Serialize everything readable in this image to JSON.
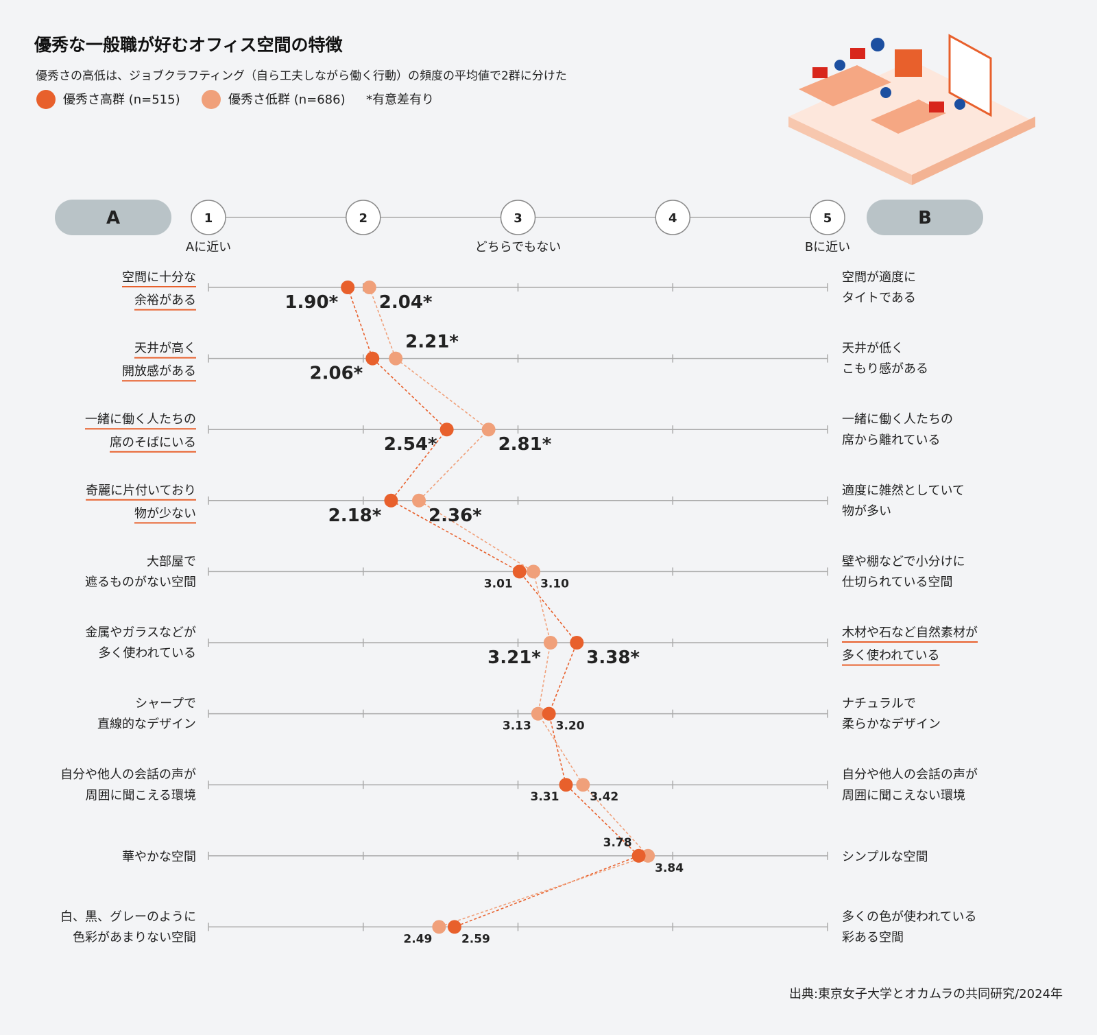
{
  "chart_data": {
    "type": "scatter",
    "title": "優秀な一般職が好むオフィス空間の特徴",
    "subtitle": "優秀さの高低は、ジョブクラフティング（自ら工夫しながら働く行動）の頻度の平均値で2群に分けた",
    "significance_note": "*有意差有り",
    "source": "出典:東京女子大学とオカムラの共同研究/2024年",
    "scale": {
      "left_pole": "A",
      "right_pole": "B",
      "ticks": [
        "1",
        "2",
        "3",
        "4",
        "5"
      ],
      "tick_labels": {
        "1": "Aに近い",
        "3": "どちらでもない",
        "5": "Bに近い"
      },
      "xlim": [
        1,
        5
      ]
    },
    "legend_placement": "top-left",
    "series": [
      {
        "name": "優秀さ高群 (n=515)",
        "color": "#e8602c",
        "values": [
          1.9,
          2.06,
          2.54,
          2.18,
          3.01,
          3.38,
          3.2,
          3.31,
          3.78,
          2.59
        ]
      },
      {
        "name": "優秀さ低群 (n=686)",
        "color": "#f0a07a",
        "values": [
          2.04,
          2.21,
          2.81,
          2.36,
          3.1,
          3.21,
          3.13,
          3.42,
          3.84,
          2.49
        ]
      }
    ],
    "items": [
      {
        "a": [
          "空間に十分な",
          "余裕がある"
        ],
        "b": [
          "空間が適度に",
          "タイトである"
        ],
        "significant": true,
        "preferred": "a"
      },
      {
        "a": [
          "天井が高く",
          "開放感がある"
        ],
        "b": [
          "天井が低く",
          "こもり感がある"
        ],
        "significant": true,
        "preferred": "a"
      },
      {
        "a": [
          "一緒に働く人たちの",
          "席のそばにいる"
        ],
        "b": [
          "一緒に働く人たちの",
          "席から離れている"
        ],
        "significant": true,
        "preferred": "a"
      },
      {
        "a": [
          "奇麗に片付いており",
          "物が少ない"
        ],
        "b": [
          "適度に雑然としていて",
          "物が多い"
        ],
        "significant": true,
        "preferred": "a"
      },
      {
        "a": [
          "大部屋で",
          "遮るものがない空間"
        ],
        "b": [
          "壁や棚などで小分けに",
          "仕切られている空間"
        ],
        "significant": false,
        "preferred": ""
      },
      {
        "a": [
          "金属やガラスなどが",
          "多く使われている"
        ],
        "b": [
          "木材や石など自然素材が",
          "多く使われている"
        ],
        "significant": true,
        "preferred": "b"
      },
      {
        "a": [
          "シャープで",
          "直線的なデザイン"
        ],
        "b": [
          "ナチュラルで",
          "柔らかなデザイン"
        ],
        "significant": false,
        "preferred": ""
      },
      {
        "a": [
          "自分や他人の会話の声が",
          "周囲に聞こえる環境"
        ],
        "b": [
          "自分や他人の会話の声が",
          "周囲に聞こえない環境"
        ],
        "significant": false,
        "preferred": ""
      },
      {
        "a": [
          "華やかな空間"
        ],
        "b": [
          "シンプルな空間"
        ],
        "significant": false,
        "preferred": ""
      },
      {
        "a": [
          "白、黒、グレーのように",
          "色彩があまりない空間"
        ],
        "b": [
          "多くの色が使われている",
          "彩ある空間"
        ],
        "significant": false,
        "preferred": ""
      }
    ],
    "value_labels": [
      [
        "1.90*",
        "2.04*"
      ],
      [
        "2.06*",
        "2.21*"
      ],
      [
        "2.54*",
        "2.81*"
      ],
      [
        "2.18*",
        "2.36*"
      ],
      [
        "3.01",
        "3.10"
      ],
      [
        "3.38*",
        "3.21*"
      ],
      [
        "3.20",
        "3.13"
      ],
      [
        "3.31",
        "3.42"
      ],
      [
        "3.78",
        "3.84"
      ],
      [
        "2.59",
        "2.49"
      ]
    ],
    "colors": {
      "background": "#f3f4f6",
      "pole_pill": "#b9c3c7",
      "grid": "#a9a9a9",
      "underline": "#e8602c"
    }
  }
}
